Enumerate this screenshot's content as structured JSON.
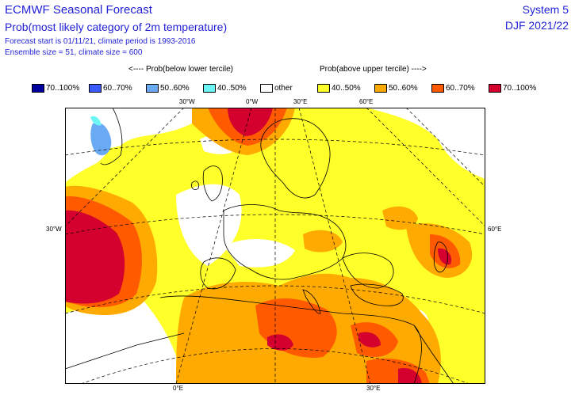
{
  "header": {
    "title": "ECMWF Seasonal Forecast",
    "subtitle": "Prob(most likely category of 2m temperature)",
    "info_line1": "Forecast start is 01/11/21, climate period is 1993-2016",
    "info_line2": "Ensemble size = 51, climate size = 600",
    "system": "System 5",
    "season": "DJF 2021/22"
  },
  "legend": {
    "below_heading": "<---- Prob(below lower tercile)",
    "above_heading": "Prob(above upper tercile) ---->",
    "items": [
      {
        "label": "70..100%",
        "color": "#00009e"
      },
      {
        "label": "60..70%",
        "color": "#3a5bff"
      },
      {
        "label": "50..60%",
        "color": "#6aaaf5"
      },
      {
        "label": "40..50%",
        "color": "#6cf5f5"
      },
      {
        "label": "other",
        "color": "#ffffff"
      },
      {
        "label": "40..50%",
        "color": "#ffff2a"
      },
      {
        "label": "50..60%",
        "color": "#ffaa00"
      },
      {
        "label": "60..70%",
        "color": "#ff5a00"
      },
      {
        "label": "70..100%",
        "color": "#d4002e"
      }
    ]
  },
  "map": {
    "grid_labels": {
      "top": [
        "30°W",
        "0°W",
        "30°E",
        "60°E"
      ],
      "left": "30°W",
      "right": "60°E",
      "bottom": [
        "0°E",
        "30°E"
      ]
    },
    "colors": {
      "above_40": "#ffff2a",
      "above_50": "#ffaa00",
      "above_60": "#ff5a00",
      "above_70": "#d4002e",
      "below_40": "#6cf5f5",
      "below_50": "#6aaaf5"
    }
  }
}
